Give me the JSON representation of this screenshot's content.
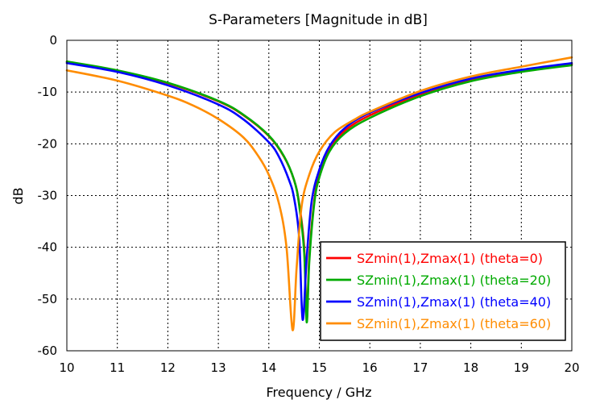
{
  "chart_data": {
    "type": "line",
    "title": "S-Parameters [Magnitude in dB]",
    "xlabel": "Frequency / GHz",
    "ylabel": "dB",
    "xlim": [
      10,
      20
    ],
    "ylim": [
      -60,
      0
    ],
    "xticks": [
      10,
      11,
      12,
      13,
      14,
      15,
      16,
      17,
      18,
      19,
      20
    ],
    "yticks": [
      0,
      -10,
      -20,
      -30,
      -40,
      -50,
      -60
    ],
    "grid": true,
    "legend_position": "bottom-right",
    "series": [
      {
        "name": "SZmin(1),Zmax(1) (theta=0)",
        "color": "#ff0000",
        "x": [
          10,
          11,
          12,
          13,
          13.5,
          14,
          14.3,
          14.5,
          14.6,
          14.7,
          14.75,
          14.8,
          14.9,
          15,
          15.2,
          15.5,
          16,
          17,
          18,
          19,
          20
        ],
        "y": [
          -4.2,
          -5.9,
          -8.3,
          -11.8,
          -14.5,
          -18.5,
          -22.5,
          -27,
          -31.5,
          -40,
          -54,
          -42,
          -31,
          -26,
          -21,
          -17.5,
          -14.5,
          -10.5,
          -7.6,
          -5.9,
          -4.6
        ]
      },
      {
        "name": "SZmin(1),Zmax(1) (theta=20)",
        "color": "#00aa00",
        "x": [
          10,
          11,
          12,
          13,
          13.5,
          14,
          14.3,
          14.5,
          14.6,
          14.7,
          14.75,
          14.8,
          14.9,
          15,
          15.2,
          15.5,
          16,
          17,
          18,
          19,
          20
        ],
        "y": [
          -4.1,
          -5.8,
          -8.2,
          -11.7,
          -14.4,
          -18.4,
          -22.4,
          -27,
          -31.8,
          -41,
          -54.5,
          -43,
          -31.5,
          -26.5,
          -21.5,
          -18,
          -15,
          -10.8,
          -7.9,
          -6.1,
          -4.8
        ]
      },
      {
        "name": "SZmin(1),Zmax(1) (theta=40)",
        "color": "#0000ff",
        "x": [
          10,
          11,
          12,
          13,
          13.5,
          14,
          14.2,
          14.4,
          14.5,
          14.6,
          14.67,
          14.75,
          14.85,
          15,
          15.2,
          15.5,
          16,
          17,
          18,
          19,
          20
        ],
        "y": [
          -4.4,
          -6.1,
          -8.7,
          -12.4,
          -15.3,
          -19.7,
          -22.5,
          -27,
          -30.5,
          -38,
          -54,
          -42,
          -31,
          -25,
          -20.5,
          -17,
          -14,
          -10.2,
          -7.4,
          -5.7,
          -4.4
        ]
      },
      {
        "name": "SZmin(1),Zmax(1) (theta=60)",
        "color": "#ff8c00",
        "x": [
          10,
          11,
          12,
          12.5,
          13,
          13.5,
          13.8,
          14,
          14.2,
          14.35,
          14.47,
          14.55,
          14.65,
          14.8,
          15,
          15.3,
          15.7,
          16,
          17,
          18,
          19,
          20
        ],
        "y": [
          -5.8,
          -7.8,
          -10.7,
          -12.6,
          -15.2,
          -18.8,
          -22.5,
          -26,
          -31.5,
          -40,
          -56,
          -44,
          -32,
          -26,
          -21.5,
          -17.8,
          -15.3,
          -13.8,
          -9.8,
          -7,
          -5.1,
          -3.3
        ]
      }
    ]
  }
}
